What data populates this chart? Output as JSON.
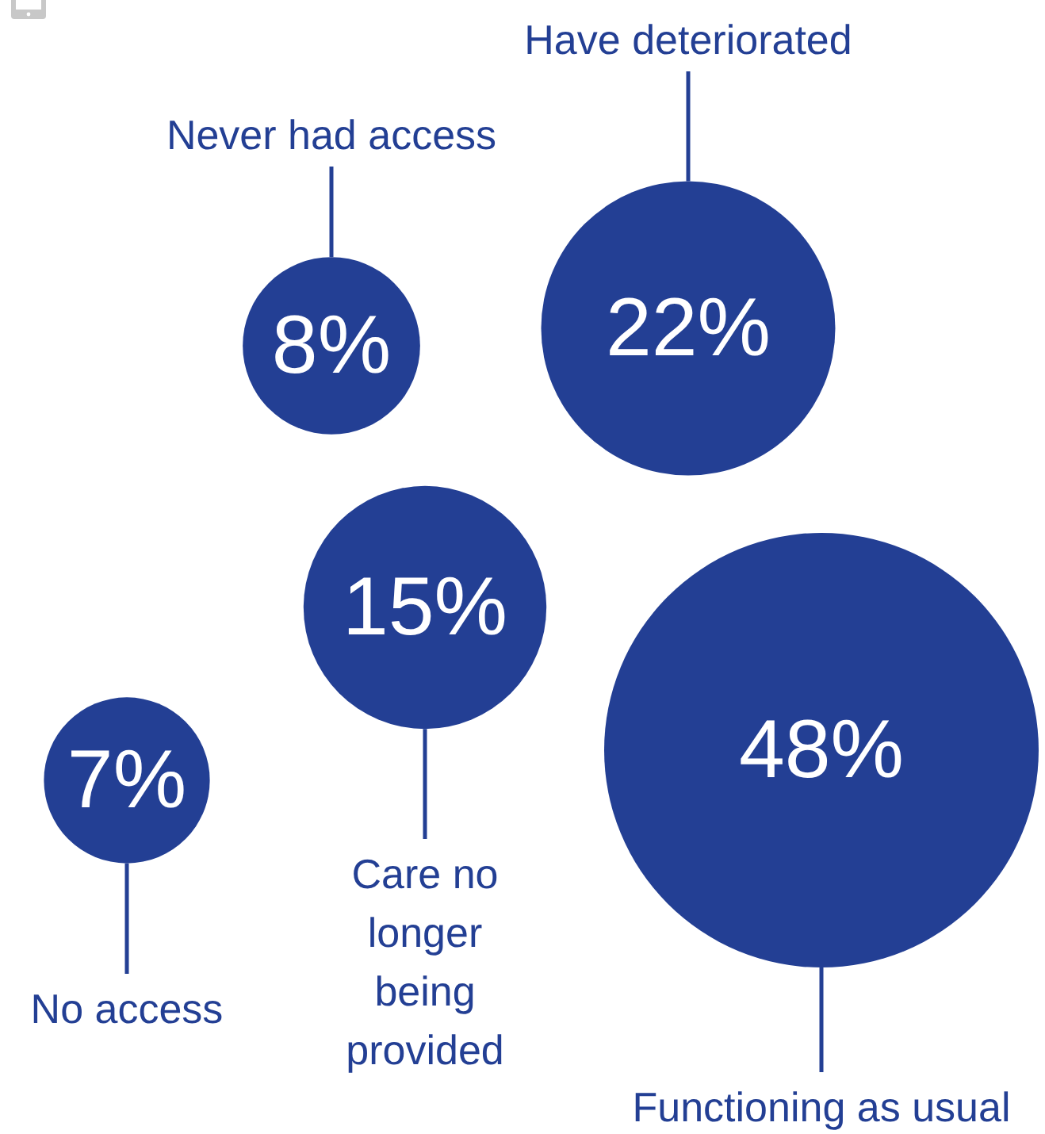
{
  "chart_data": {
    "type": "other",
    "categories": [
      "Never had access",
      "Have deteriorated",
      "Care no longer being provided",
      "No access",
      "Functioning as usual"
    ],
    "values": [
      8,
      22,
      15,
      7,
      48
    ],
    "value_labels": [
      "8%",
      "22%",
      "15%",
      "7%",
      "48%"
    ],
    "color": "#233f94"
  }
}
